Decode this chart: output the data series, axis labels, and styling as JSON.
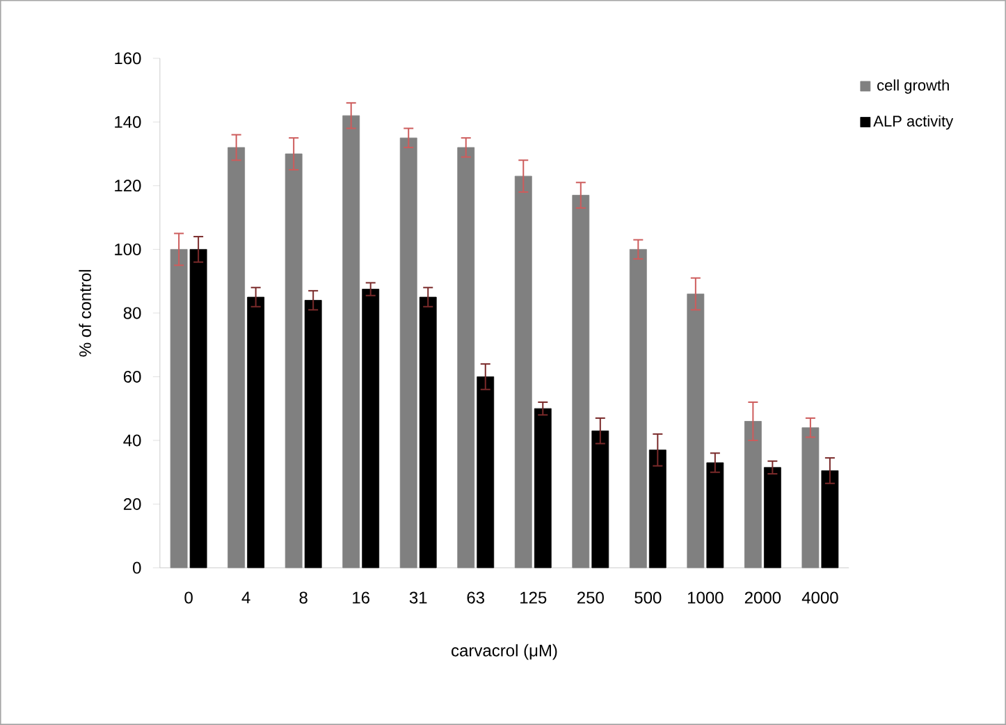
{
  "chart_data": {
    "type": "bar",
    "xlabel": "carvacrol  (μM)",
    "ylabel": "% of control",
    "categories": [
      "0",
      "4",
      "8",
      "16",
      "31",
      "63",
      "125",
      "250",
      "500",
      "1000",
      "2000",
      "4000"
    ],
    "series": [
      {
        "name": "cell growth",
        "color": "#808080",
        "values": [
          100,
          132,
          130,
          142,
          135,
          132,
          123,
          117,
          100,
          86,
          46,
          44
        ],
        "errors": [
          5,
          4,
          5,
          4,
          3,
          3,
          5,
          4,
          3,
          5,
          6,
          3
        ]
      },
      {
        "name": "ALP activity",
        "color": "#000000",
        "values": [
          100,
          85,
          84,
          87.5,
          85,
          60,
          50,
          43,
          37,
          33,
          31.5,
          30.5
        ],
        "errors": [
          4,
          3,
          3,
          2,
          3,
          4,
          2,
          4,
          5,
          3,
          2,
          4
        ]
      }
    ],
    "ylim": [
      0,
      160
    ],
    "yticks": [
      0,
      20,
      40,
      60,
      80,
      100,
      120,
      140,
      160
    ],
    "grid": false,
    "legend": "top right"
  }
}
